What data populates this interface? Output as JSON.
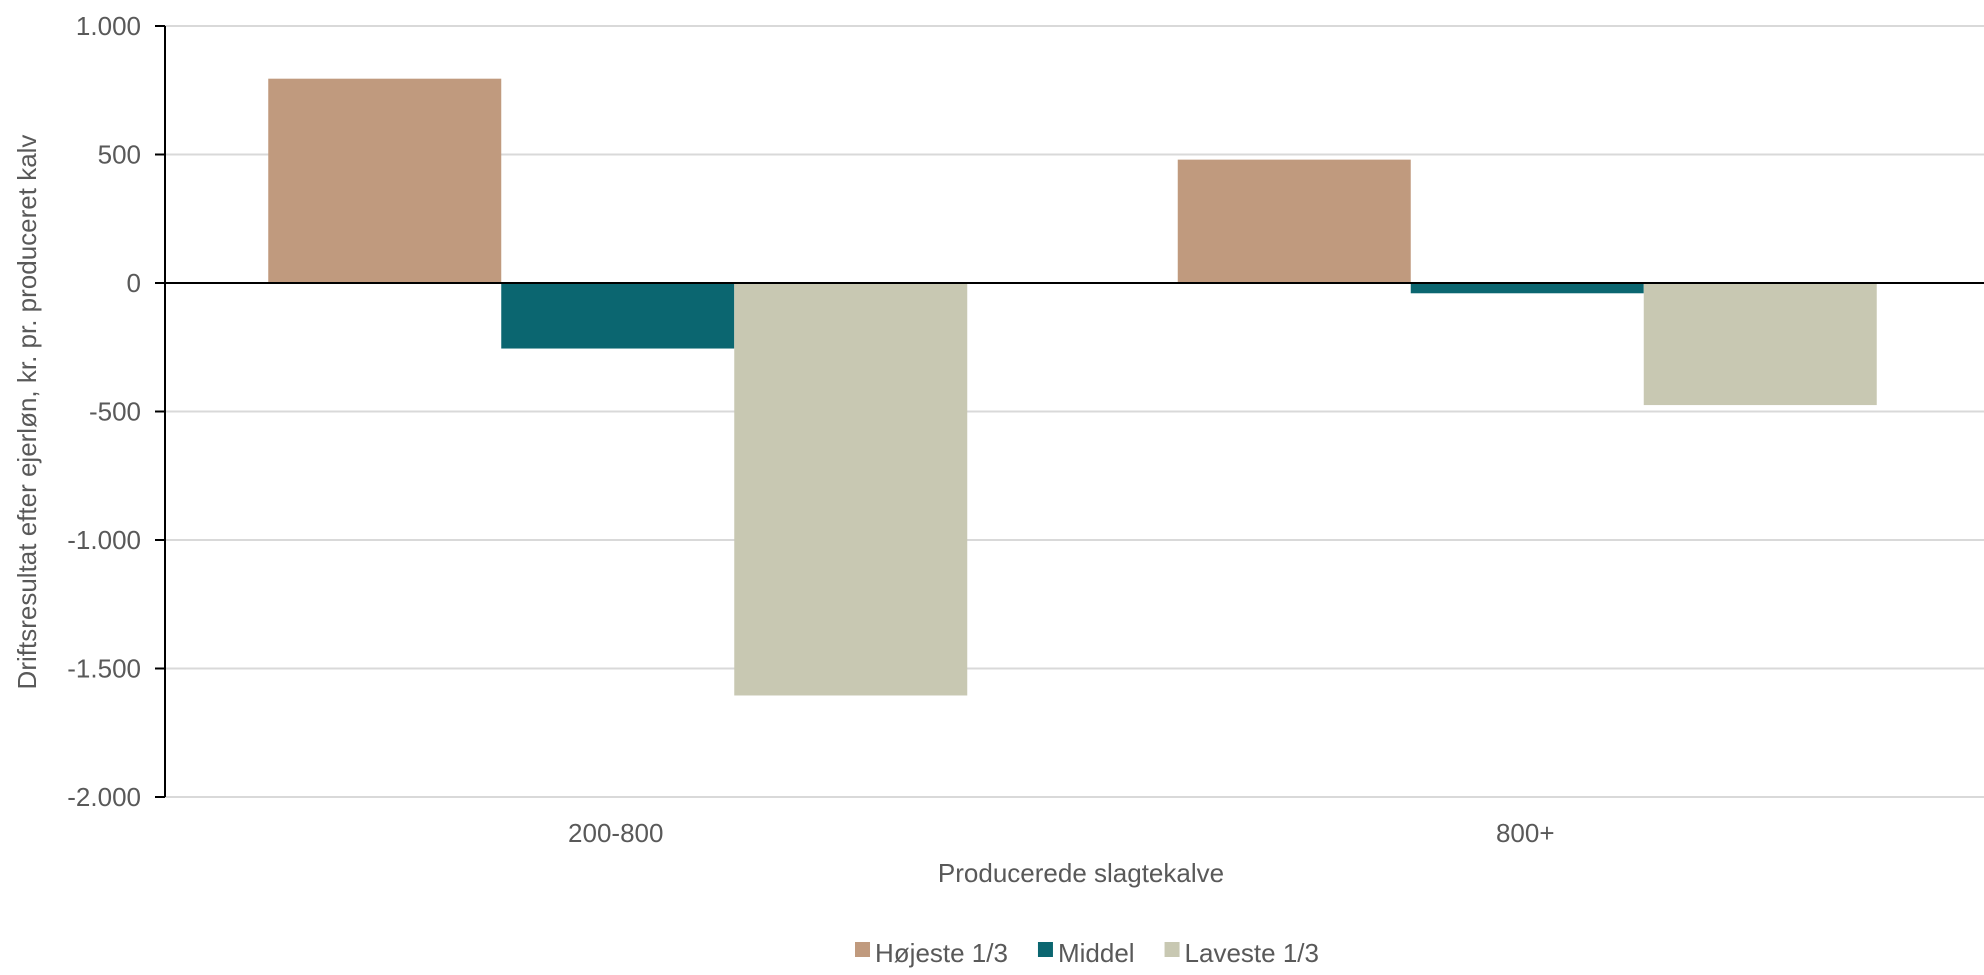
{
  "chart_data": {
    "type": "bar",
    "title": "",
    "xlabel": "Producerede slagtekalve",
    "ylabel": "Driftsresultat efter ejerløn, kr. pr. produceret kalv",
    "categories": [
      "200-800",
      "800+"
    ],
    "series": [
      {
        "name": "Højeste 1/3",
        "color": "#C09A7E",
        "values": [
          795,
          480
        ]
      },
      {
        "name": "Middel",
        "color": "#0B6670",
        "values": [
          -255,
          -40
        ]
      },
      {
        "name": "Laveste 1/3",
        "color": "#C8C8B2",
        "values": [
          -1605,
          -475
        ]
      }
    ],
    "ylim": [
      -2000,
      1000
    ],
    "yticks": [
      1000,
      500,
      0,
      -500,
      -1000,
      -1500,
      -2000
    ],
    "ytick_labels": [
      "1.000",
      "500",
      "0",
      "-500",
      "-1.000",
      "-1.500",
      "-2.000"
    ],
    "grid": true,
    "legend_position": "bottom-center"
  }
}
